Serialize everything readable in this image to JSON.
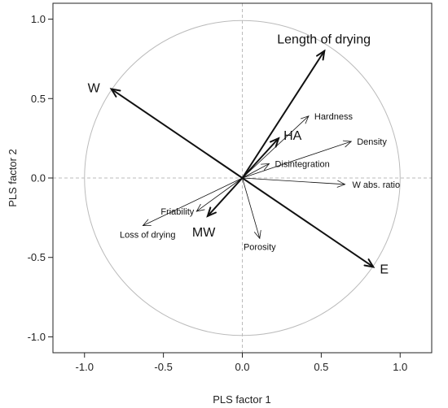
{
  "chart_data": {
    "type": "scatter",
    "subtype": "pls-loading-biplot",
    "title": "",
    "xlabel": "PLS factor 1",
    "ylabel": "PLS factor 2",
    "xlim": [
      -1.2,
      1.2
    ],
    "ylim": [
      -1.1,
      1.1
    ],
    "xticks": [
      "-1.0",
      "-0.5",
      "0.0",
      "0.5",
      "1.0"
    ],
    "yticks": [
      "-1.0",
      "-0.5",
      "0.0",
      "0.5",
      "1.0"
    ],
    "grid": false,
    "reference_lines": [
      0.0
    ],
    "unit_circle_radius": 1.0,
    "vectors": [
      {
        "name": "W",
        "x": -0.83,
        "y": 0.56,
        "emphasis": "bold"
      },
      {
        "name": "Length of drying",
        "x": 0.52,
        "y": 0.8,
        "emphasis": "bold"
      },
      {
        "name": "E",
        "x": 0.83,
        "y": -0.56,
        "emphasis": "bold"
      },
      {
        "name": "MW",
        "x": -0.22,
        "y": -0.24,
        "emphasis": "bold"
      },
      {
        "name": "HA",
        "x": 0.23,
        "y": 0.25,
        "emphasis": "bold"
      },
      {
        "name": "Hardness",
        "x": 0.42,
        "y": 0.39,
        "emphasis": "normal"
      },
      {
        "name": "Density",
        "x": 0.69,
        "y": 0.23,
        "emphasis": "normal"
      },
      {
        "name": "Disintegration",
        "x": 0.17,
        "y": 0.09,
        "emphasis": "normal"
      },
      {
        "name": "W abs. ratio",
        "x": 0.65,
        "y": -0.04,
        "emphasis": "normal"
      },
      {
        "name": "Friability",
        "x": -0.29,
        "y": -0.21,
        "emphasis": "normal"
      },
      {
        "name": "Loss of drying",
        "x": -0.63,
        "y": -0.3,
        "emphasis": "normal"
      },
      {
        "name": "Porosity",
        "x": 0.11,
        "y": -0.38,
        "emphasis": "normal"
      }
    ]
  },
  "colors": {
    "circle": "#bbbbbb",
    "reference": "#bbbbbb",
    "arrow": "#111111",
    "frame": "#222222"
  }
}
